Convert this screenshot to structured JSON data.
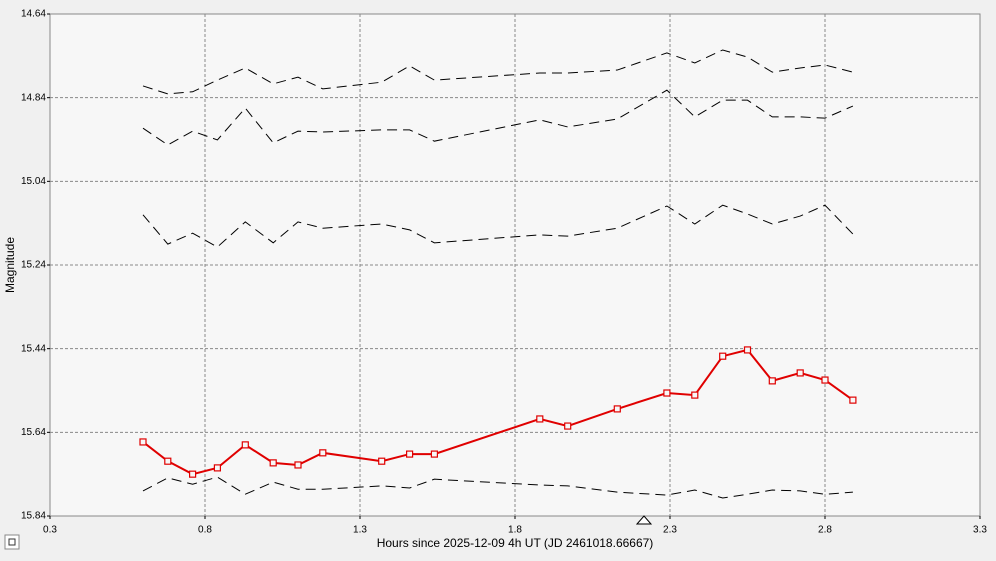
{
  "chart_data": {
    "type": "line",
    "xlabel": "Hours since 2025-12-09 4h UT (JD 2461018.66667)",
    "ylabel": "Magnitude",
    "x": [
      0.6,
      0.68,
      0.76,
      0.84,
      0.93,
      1.02,
      1.1,
      1.18,
      1.37,
      1.46,
      1.54,
      1.88,
      1.97,
      2.13,
      2.29,
      2.38,
      2.47,
      2.55,
      2.63,
      2.72,
      2.8,
      2.89
    ],
    "xlim": [
      0.3,
      3.3
    ],
    "xticks": [
      0.3,
      0.8,
      1.3,
      1.8,
      2.3,
      2.8,
      3.3
    ],
    "ylim": [
      14.64,
      15.84
    ],
    "yticks": [
      14.64,
      14.84,
      15.04,
      15.24,
      15.44,
      15.64,
      15.84
    ],
    "y_inverted": true,
    "grid": true,
    "series": [
      {
        "color": "#000000",
        "dashed": true,
        "values": [
          14.812,
          14.831,
          14.826,
          14.798,
          14.769,
          14.807,
          14.791,
          14.819,
          14.803,
          14.764,
          14.798,
          14.781,
          14.781,
          14.774,
          14.733,
          14.757,
          14.726,
          14.743,
          14.779,
          14.769,
          14.762,
          14.779
        ]
      },
      {
        "color": "#000000",
        "dashed": true,
        "values": [
          14.913,
          14.953,
          14.92,
          14.941,
          14.865,
          14.948,
          14.92,
          14.922,
          14.917,
          14.917,
          14.944,
          14.893,
          14.91,
          14.891,
          14.822,
          14.886,
          14.846,
          14.846,
          14.886,
          14.886,
          14.889,
          14.86
        ]
      },
      {
        "color": "#000000",
        "dashed": true,
        "values": [
          15.12,
          15.19,
          15.164,
          15.197,
          15.137,
          15.187,
          15.137,
          15.152,
          15.142,
          15.156,
          15.187,
          15.168,
          15.171,
          15.152,
          15.099,
          15.142,
          15.097,
          15.118,
          15.142,
          15.123,
          15.097,
          15.166
        ]
      },
      {
        "color": "#000000",
        "dashed": true,
        "values": [
          15.78,
          15.749,
          15.764,
          15.747,
          15.788,
          15.759,
          15.776,
          15.776,
          15.768,
          15.773,
          15.752,
          15.766,
          15.768,
          15.783,
          15.79,
          15.778,
          15.797,
          15.788,
          15.778,
          15.78,
          15.788,
          15.783
        ]
      },
      {
        "color": "#e00000",
        "dashed": false,
        "markers": true,
        "values": [
          15.663,
          15.709,
          15.74,
          15.725,
          15.67,
          15.713,
          15.718,
          15.689,
          15.709,
          15.692,
          15.692,
          15.608,
          15.625,
          15.584,
          15.546,
          15.551,
          15.458,
          15.443,
          15.517,
          15.498,
          15.515,
          15.563
        ]
      }
    ]
  }
}
